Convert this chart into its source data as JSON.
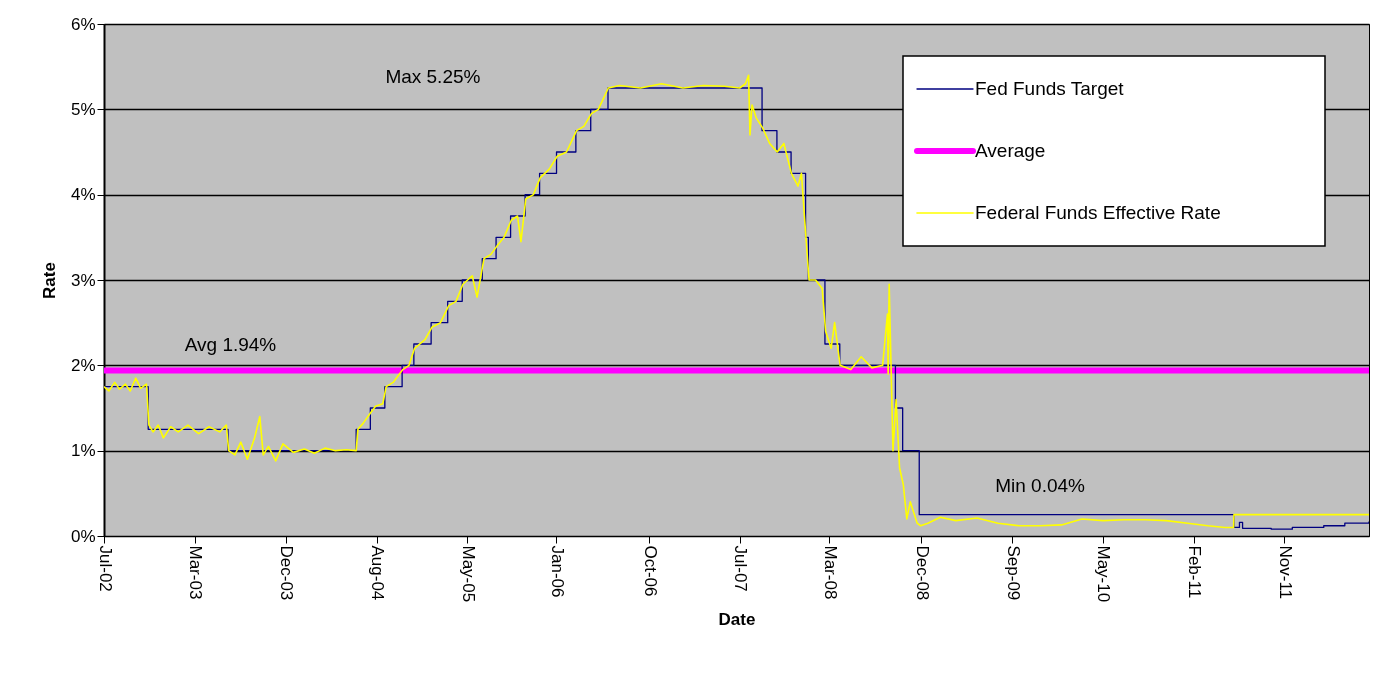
{
  "chart_data": {
    "type": "line",
    "xlabel": "Date",
    "ylabel": "Rate",
    "xlim": [
      "2002-07-01",
      "2012-07-10"
    ],
    "ylim": [
      0,
      6
    ],
    "xticks": [
      {
        "value": "2002-07-01",
        "label": "Jul-02"
      },
      {
        "value": "2003-03-21",
        "label": "Mar-03"
      },
      {
        "value": "2003-12-09",
        "label": "Dec-03"
      },
      {
        "value": "2004-08-28",
        "label": "Aug-04"
      },
      {
        "value": "2005-05-18",
        "label": "May-05"
      },
      {
        "value": "2006-01-30",
        "label": "Jan-06"
      },
      {
        "value": "2006-10-26",
        "label": "Oct-06"
      },
      {
        "value": "2007-07-16",
        "label": "Jul-07"
      },
      {
        "value": "2008-03-30",
        "label": "Mar-08"
      },
      {
        "value": "2008-12-22",
        "label": "Dec-08"
      },
      {
        "value": "2009-09-11",
        "label": "Sep-09"
      },
      {
        "value": "2010-05-31",
        "label": "May-10"
      },
      {
        "value": "2011-02-18",
        "label": "Feb-11"
      },
      {
        "value": "2011-11-08",
        "label": "Nov-11"
      }
    ],
    "yticks": [
      {
        "value": 0,
        "label": "0%"
      },
      {
        "value": 1,
        "label": "1%"
      },
      {
        "value": 2,
        "label": "2%"
      },
      {
        "value": 3,
        "label": "3%"
      },
      {
        "value": 4,
        "label": "4%"
      },
      {
        "value": 5,
        "label": "5%"
      },
      {
        "value": 6,
        "label": "6%"
      }
    ],
    "grid": "y",
    "legend": "top right",
    "annotations": [
      "Max 5.25%",
      "Avg 1.94%",
      "Min 0.04%"
    ],
    "series": [
      {
        "name": "Fed Funds Target",
        "type": "step",
        "color": "#000080",
        "x": [
          "2002-07-01",
          "2002-11-06",
          "2003-06-25",
          "2004-06-30",
          "2004-08-10",
          "2004-09-21",
          "2004-11-10",
          "2004-12-14",
          "2005-02-02",
          "2005-03-22",
          "2005-05-03",
          "2005-06-30",
          "2005-08-09",
          "2005-09-20",
          "2005-11-01",
          "2005-12-13",
          "2006-01-31",
          "2006-03-28",
          "2006-05-10",
          "2006-06-29",
          "2007-09-18",
          "2007-10-31",
          "2007-12-11",
          "2008-01-22",
          "2008-01-30",
          "2008-03-18",
          "2008-04-30",
          "2008-10-08",
          "2008-10-29",
          "2008-12-16",
          "2011-06-15",
          "2011-06-20",
          "2011-07-01",
          "2011-07-10",
          "2011-10-01",
          "2011-12-01",
          "2012-03-01",
          "2012-05-01",
          "2012-07-10"
        ],
        "values": [
          1.75,
          1.25,
          1.0,
          1.25,
          1.5,
          1.75,
          2.0,
          2.25,
          2.5,
          2.75,
          3.0,
          3.25,
          3.5,
          3.75,
          4.0,
          4.25,
          4.5,
          4.75,
          5.0,
          5.25,
          4.75,
          4.5,
          4.25,
          3.5,
          3.0,
          2.25,
          2.0,
          1.5,
          1.0,
          0.25,
          0.1,
          0.1,
          0.16,
          0.09,
          0.08,
          0.1,
          0.12,
          0.15,
          0.17
        ]
      },
      {
        "name": "Average",
        "type": "line",
        "color": "#ff00ff",
        "x": [
          "2002-07-01",
          "2012-07-10"
        ],
        "values": [
          1.94,
          1.94
        ]
      },
      {
        "name": "Federal Funds Effective Rate",
        "type": "line",
        "color": "#ffff00",
        "x": [
          "2002-07-01",
          "2002-07-15",
          "2002-08-01",
          "2002-08-15",
          "2002-09-01",
          "2002-09-15",
          "2002-10-01",
          "2002-10-15",
          "2002-11-01",
          "2002-11-08",
          "2002-11-20",
          "2002-12-05",
          "2002-12-20",
          "2003-01-10",
          "2003-02-01",
          "2003-03-01",
          "2003-04-01",
          "2003-05-01",
          "2003-06-01",
          "2003-06-20",
          "2003-06-27",
          "2003-07-15",
          "2003-08-01",
          "2003-08-20",
          "2003-09-10",
          "2003-09-25",
          "2003-10-05",
          "2003-10-20",
          "2003-11-10",
          "2003-12-01",
          "2003-12-31",
          "2004-02-01",
          "2004-03-01",
          "2004-04-01",
          "2004-05-01",
          "2004-06-01",
          "2004-06-30",
          "2004-07-05",
          "2004-07-20",
          "2004-08-12",
          "2004-08-25",
          "2004-09-15",
          "2004-09-25",
          "2004-10-15",
          "2004-11-12",
          "2004-11-30",
          "2004-12-16",
          "2005-01-15",
          "2005-02-05",
          "2005-03-01",
          "2005-03-25",
          "2005-04-15",
          "2005-05-05",
          "2005-06-01",
          "2005-06-15",
          "2005-07-05",
          "2005-07-25",
          "2005-08-12",
          "2005-09-01",
          "2005-09-22",
          "2005-10-10",
          "2005-10-20",
          "2005-11-03",
          "2005-11-25",
          "2005-12-15",
          "2006-01-10",
          "2006-02-02",
          "2006-03-01",
          "2006-03-30",
          "2006-04-20",
          "2006-05-12",
          "2006-06-01",
          "2006-06-30",
          "2006-08-01",
          "2006-10-01",
          "2006-12-01",
          "2007-02-01",
          "2007-04-01",
          "2007-06-01",
          "2007-07-15",
          "2007-08-01",
          "2007-08-10",
          "2007-08-14",
          "2007-08-20",
          "2007-09-01",
          "2007-09-20",
          "2007-10-10",
          "2007-11-01",
          "2007-11-20",
          "2007-12-12",
          "2007-12-31",
          "2008-01-10",
          "2008-01-23",
          "2008-02-01",
          "2008-02-20",
          "2008-03-10",
          "2008-03-20",
          "2008-04-05",
          "2008-04-15",
          "2008-05-01",
          "2008-06-01",
          "2008-07-01",
          "2008-08-01",
          "2008-09-01",
          "2008-09-15",
          "2008-09-17",
          "2008-09-20",
          "2008-10-01",
          "2008-10-10",
          "2008-10-20",
          "2008-10-31",
          "2008-11-10",
          "2008-11-20",
          "2008-12-10",
          "2008-12-20",
          "2009-01-10",
          "2009-02-15",
          "2009-04-01",
          "2009-06-01",
          "2009-08-01",
          "2009-10-01",
          "2009-12-01",
          "2010-02-01",
          "2010-04-01",
          "2010-06-01",
          "2010-08-01",
          "2010-10-01",
          "2010-12-01",
          "2011-02-01",
          "2011-04-01",
          "2011-05-20",
          "2011-06-14",
          "2011-06-15",
          "2012-07-10"
        ],
        "values": [
          1.75,
          1.7,
          1.8,
          1.72,
          1.78,
          1.7,
          1.85,
          1.73,
          1.78,
          1.3,
          1.22,
          1.3,
          1.15,
          1.28,
          1.22,
          1.3,
          1.2,
          1.28,
          1.22,
          1.3,
          1.0,
          0.95,
          1.1,
          0.9,
          1.15,
          1.4,
          0.95,
          1.05,
          0.88,
          1.08,
          0.98,
          1.02,
          0.97,
          1.03,
          1.0,
          1.01,
          1.0,
          1.25,
          1.32,
          1.45,
          1.52,
          1.55,
          1.75,
          1.8,
          1.95,
          2.0,
          2.2,
          2.3,
          2.45,
          2.5,
          2.7,
          2.75,
          2.95,
          3.05,
          2.8,
          3.25,
          3.3,
          3.4,
          3.5,
          3.7,
          3.75,
          3.45,
          3.95,
          4.0,
          4.2,
          4.3,
          4.45,
          4.5,
          4.75,
          4.8,
          4.95,
          5.0,
          5.25,
          5.28,
          5.25,
          5.3,
          5.25,
          5.28,
          5.27,
          5.25,
          5.3,
          5.4,
          4.7,
          5.05,
          4.9,
          4.78,
          4.6,
          4.5,
          4.6,
          4.25,
          4.1,
          4.25,
          3.5,
          3.0,
          3.0,
          2.9,
          2.4,
          2.2,
          2.5,
          2.0,
          1.95,
          2.1,
          1.97,
          2.0,
          2.6,
          1.9,
          2.95,
          1.0,
          1.6,
          0.8,
          0.6,
          0.2,
          0.4,
          0.15,
          0.12,
          0.15,
          0.22,
          0.18,
          0.21,
          0.15,
          0.12,
          0.12,
          0.13,
          0.2,
          0.18,
          0.19,
          0.19,
          0.18,
          0.15,
          0.12,
          0.1,
          0.1,
          0.25,
          0.25
        ]
      }
    ]
  }
}
